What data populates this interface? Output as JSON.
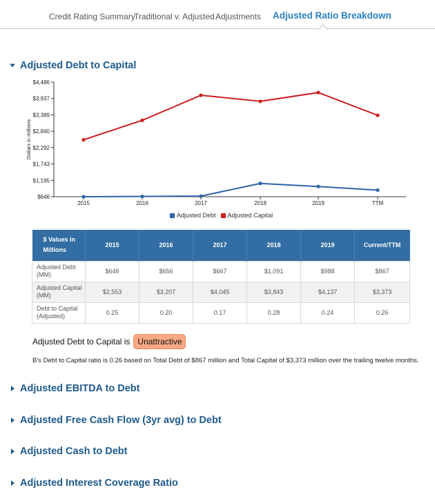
{
  "tabs": [
    {
      "label": "Credit Rating Summary"
    },
    {
      "label": "Traditional v. Adjusted"
    },
    {
      "label": "Adjustments"
    },
    {
      "label": "Adjusted Ratio Breakdown"
    }
  ],
  "sections": {
    "debt_to_capital": {
      "title": "Adjusted Debt to Capital"
    },
    "ebitda_to_debt": {
      "title": "Adjusted EBITDA to Debt"
    },
    "fcf_to_debt": {
      "title": "Adjusted Free Cash Flow (3yr avg) to Debt"
    },
    "cash_to_debt": {
      "title": "Adjusted Cash to Debt"
    },
    "interest_coverage": {
      "title": "Adjusted Interest Coverage Ratio"
    }
  },
  "chart_data": {
    "type": "line",
    "title": "",
    "xlabel": "",
    "ylabel": "Dollars in millions",
    "categories": [
      "2015",
      "2016",
      "2017",
      "2018",
      "2019",
      "TTM"
    ],
    "y_ticks": [
      "$4,486",
      "$3,937",
      "$3,389",
      "$2,840",
      "$2,292",
      "$1,743",
      "$1,195",
      "$646"
    ],
    "ylim": [
      646,
      4486
    ],
    "legend_position": "bottom",
    "series": [
      {
        "name": "Adjusted Debt",
        "color": "#2d64a8",
        "values": [
          646,
          656,
          667,
          1091,
          988,
          867
        ]
      },
      {
        "name": "Adjusted Capital",
        "color": "#cc1f1f",
        "values": [
          2553,
          3207,
          4045,
          3843,
          4137,
          3373
        ]
      }
    ]
  },
  "table": {
    "header": [
      "$ Values in Millions",
      "2015",
      "2016",
      "2017",
      "2018",
      "2019",
      "Current/TTM"
    ],
    "rows": [
      {
        "label": "Adjusted Debt (MM)",
        "cells": [
          "$646",
          "$656",
          "$667",
          "$1,091",
          "$988",
          "$867"
        ]
      },
      {
        "label": "Adjusted Capital (MM)",
        "cells": [
          "$2,553",
          "$3,207",
          "$4,045",
          "$3,843",
          "$4,137",
          "$3,373"
        ]
      },
      {
        "label": "Debt to Capital (Adjusted)",
        "cells": [
          "0.25",
          "0.20",
          "0.17",
          "0.28",
          "0.24",
          "0.26"
        ]
      }
    ]
  },
  "verdict": {
    "prefix": "Adjusted Debt to Capital is",
    "rating": "Unattractive"
  },
  "description": "B's Debt to Capital ratio is 0.26 based on Total Debt of $867 million and Total Capital of $3,373 million over the trailing twelve months.",
  "colors": {
    "accent": "#2a7fc1",
    "header_blue": "#326ea3",
    "badge": "#f7a884",
    "section_title": "#1f5a8c"
  }
}
